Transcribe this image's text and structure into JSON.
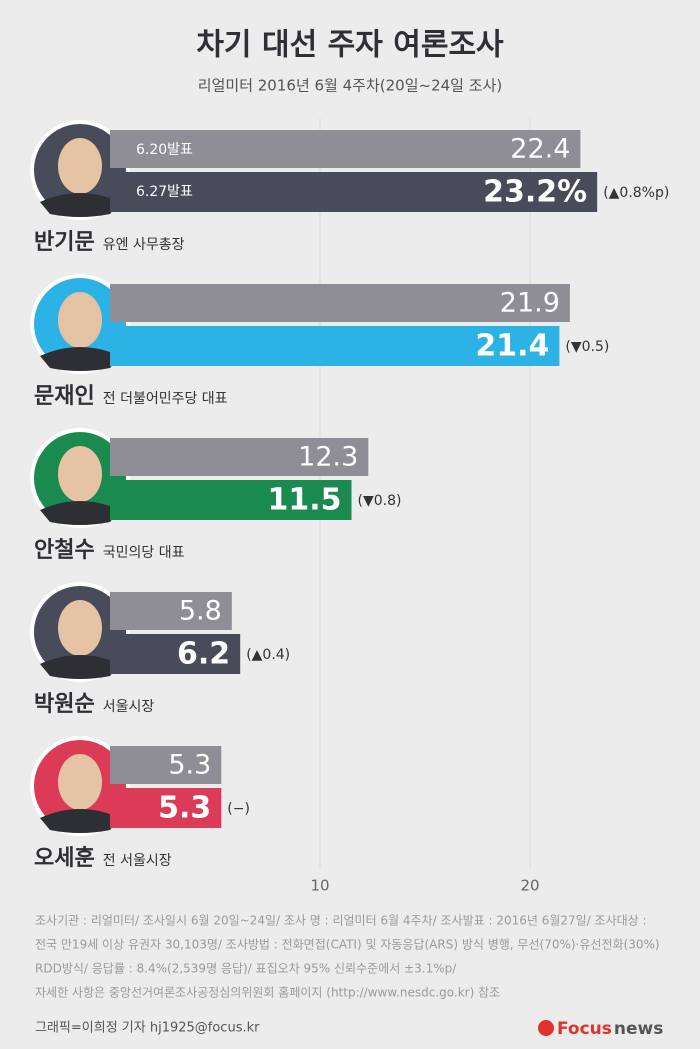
{
  "chart_data": {
    "type": "paired-bar",
    "title": "차기 대선 주자 여론조사",
    "subtitle": "리얼미터 2016년 6월 4주차(20일~24일 조사)",
    "categories": [
      "반기문",
      "문재인",
      "안철수",
      "박원순",
      "오세훈"
    ],
    "descriptions": [
      "유엔 사무총장",
      "전 더불어민주당 대표",
      "국민의당 대표",
      "서울시장",
      "전 서울시장"
    ],
    "series": [
      {
        "name": "6.20발표",
        "color": "#8f8d96",
        "values": [
          22.4,
          21.9,
          12.3,
          5.8,
          5.3
        ]
      },
      {
        "name": "6.27발표",
        "colors": [
          "#474b5a",
          "#2cb2e4",
          "#1b8a4f",
          "#474b5a",
          "#dc3b58"
        ],
        "values": [
          23.2,
          21.4,
          11.5,
          6.2,
          5.3
        ],
        "value_labels": [
          "23.2%",
          "21.4",
          "11.5",
          "6.2",
          "5.3"
        ]
      }
    ],
    "changes": [
      "(▲0.8%p)",
      "(▼0.5)",
      "(▼0.8)",
      "(▲0.4)",
      "(−)"
    ],
    "xlim": [
      0,
      28
    ],
    "xticks": [
      10,
      20
    ],
    "grid": true,
    "notes": [
      "조사기관 : 리얼미터/ 조사일시 6월 20일~24일/ 조사 명 : 리얼미터 6월 4주차/ 조사발표 : 2016년 6월27일/ 조사대상 :",
      "전국 만19세 이상 유권자 30,103명/ 조사방법 : 전화면접(CATI) 및 자동응답(ARS) 방식 병행, 무선(70%)·유선전화(30%)",
      "RDD방식/ 응답률 : 8.4%(2,539명 응답)/ 표집오차 95% 신뢰수준에서 ±3.1%p/",
      "자세한 사항은 중앙선거여론조사공정심의위원회 홈페이지 (http://www.nesdc.go.kr) 참조"
    ],
    "credit": "그래픽=이희정 기자 hj1925@focus.kr",
    "logo_brand": "Focus",
    "logo_suffix": "news"
  }
}
